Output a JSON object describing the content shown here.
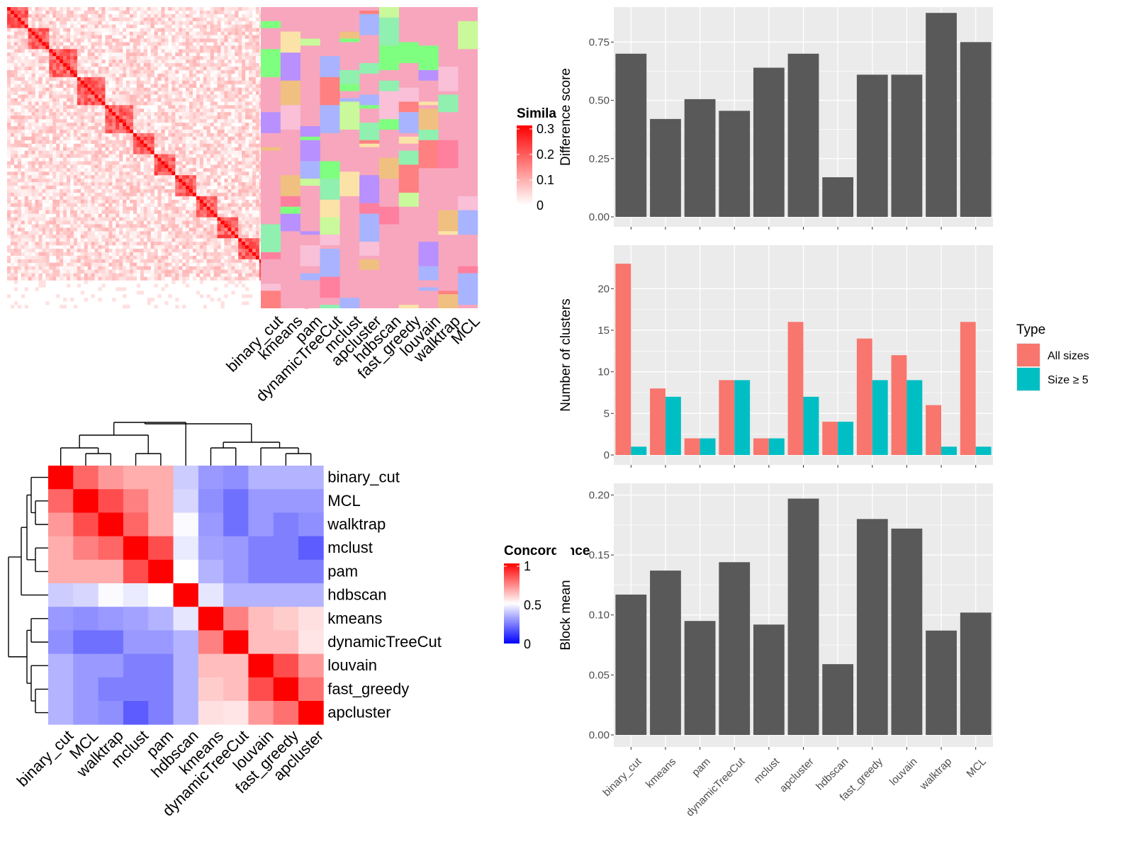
{
  "colors": {
    "panel_bg": "#ebebeb",
    "grid": "#ffffff",
    "bar": "#595959",
    "all_sizes": "#f8766d",
    "size5": "#00bfc4",
    "sim_low": "#ffffff",
    "sim_high": "#ff0000",
    "conc_low": "#0000ff",
    "conc_mid": "#ffffff",
    "conc_high": "#ff0000"
  },
  "methods": [
    "binary_cut",
    "kmeans",
    "pam",
    "dynamicTreeCut",
    "mclust",
    "apcluster",
    "hdbscan",
    "fast_greedy",
    "louvain",
    "walktrap",
    "MCL"
  ],
  "similarity_heatmap": {
    "legend_title": "Similarity",
    "legend_ticks": [
      "0.3",
      "0.2",
      "0.1",
      "0"
    ],
    "column_labels": [
      "binary_cut",
      "kmeans",
      "pam",
      "dynamicTreeCut",
      "mclust",
      "apcluster",
      "hdbscan",
      "fast_greedy",
      "louvain",
      "walktrap",
      "MCL"
    ]
  },
  "concordance_heatmap": {
    "legend_title": "Concordance",
    "legend_ticks": [
      "1",
      "0.5",
      "0"
    ],
    "order": [
      "binary_cut",
      "MCL",
      "walktrap",
      "mclust",
      "pam",
      "hdbscan",
      "kmeans",
      "dynamicTreeCut",
      "louvain",
      "fast_greedy",
      "apcluster"
    ],
    "matrix": [
      [
        1.0,
        0.8,
        0.7,
        0.66,
        0.66,
        0.4,
        0.3,
        0.28,
        0.35,
        0.35,
        0.35
      ],
      [
        0.8,
        1.0,
        0.85,
        0.75,
        0.66,
        0.42,
        0.28,
        0.22,
        0.3,
        0.3,
        0.3
      ],
      [
        0.7,
        0.85,
        1.0,
        0.8,
        0.66,
        0.49,
        0.3,
        0.22,
        0.3,
        0.25,
        0.28
      ],
      [
        0.66,
        0.75,
        0.8,
        1.0,
        0.85,
        0.46,
        0.32,
        0.3,
        0.25,
        0.25,
        0.18
      ],
      [
        0.66,
        0.66,
        0.66,
        0.85,
        1.0,
        0.5,
        0.35,
        0.3,
        0.25,
        0.25,
        0.25
      ],
      [
        0.4,
        0.42,
        0.49,
        0.46,
        0.5,
        1.0,
        0.45,
        0.35,
        0.35,
        0.35,
        0.35
      ],
      [
        0.3,
        0.28,
        0.3,
        0.32,
        0.35,
        0.45,
        1.0,
        0.75,
        0.63,
        0.6,
        0.56
      ],
      [
        0.28,
        0.22,
        0.22,
        0.3,
        0.3,
        0.35,
        0.75,
        1.0,
        0.63,
        0.63,
        0.55
      ],
      [
        0.35,
        0.3,
        0.3,
        0.25,
        0.25,
        0.35,
        0.63,
        0.63,
        1.0,
        0.85,
        0.7
      ],
      [
        0.35,
        0.3,
        0.25,
        0.25,
        0.25,
        0.35,
        0.6,
        0.63,
        0.85,
        1.0,
        0.78
      ],
      [
        0.35,
        0.3,
        0.28,
        0.18,
        0.25,
        0.35,
        0.56,
        0.55,
        0.7,
        0.78,
        1.0
      ]
    ]
  },
  "chart_data": [
    {
      "type": "bar",
      "categories": [
        "binary_cut",
        "kmeans",
        "pam",
        "dynamicTreeCut",
        "mclust",
        "apcluster",
        "hdbscan",
        "fast_greedy",
        "louvain",
        "walktrap",
        "MCL"
      ],
      "values": [
        0.7,
        0.42,
        0.505,
        0.455,
        0.64,
        0.7,
        0.17,
        0.61,
        0.61,
        0.875,
        0.75
      ],
      "ylabel": "Difference score",
      "ylim": [
        0,
        0.9
      ],
      "yticks": [
        0,
        0.25,
        0.5,
        0.75
      ],
      "ytick_labels": [
        "0.00",
        "0.25",
        "0.50",
        "0.75"
      ],
      "grid": true
    },
    {
      "type": "bar",
      "categories": [
        "binary_cut",
        "kmeans",
        "pam",
        "dynamicTreeCut",
        "mclust",
        "apcluster",
        "hdbscan",
        "fast_greedy",
        "louvain",
        "walktrap",
        "MCL"
      ],
      "series": [
        {
          "name": "All sizes",
          "values": [
            23,
            8,
            2,
            9,
            2,
            16,
            4,
            14,
            12,
            6,
            16
          ]
        },
        {
          "name": "Size ≥ 5",
          "values": [
            1,
            7,
            2,
            9,
            2,
            7,
            4,
            9,
            9,
            1,
            1
          ]
        }
      ],
      "ylabel": "Number of clusters",
      "ylim": [
        0,
        24.2
      ],
      "yticks": [
        0,
        5,
        10,
        15,
        20
      ],
      "ytick_labels": [
        "0",
        "5",
        "10",
        "15",
        "20"
      ],
      "legend_title": "Type",
      "legend_position": "right",
      "grid": true
    },
    {
      "type": "bar",
      "categories": [
        "binary_cut",
        "kmeans",
        "pam",
        "dynamicTreeCut",
        "mclust",
        "apcluster",
        "hdbscan",
        "fast_greedy",
        "louvain",
        "walktrap",
        "MCL"
      ],
      "values": [
        0.117,
        0.137,
        0.095,
        0.144,
        0.092,
        0.197,
        0.059,
        0.18,
        0.172,
        0.087,
        0.102
      ],
      "ylabel": "Block mean",
      "ylim": [
        0,
        0.205
      ],
      "yticks": [
        0,
        0.05,
        0.1,
        0.15,
        0.2
      ],
      "ytick_labels": [
        "0.00",
        "0.05",
        "0.10",
        "0.15",
        "0.20"
      ],
      "grid": true
    }
  ]
}
